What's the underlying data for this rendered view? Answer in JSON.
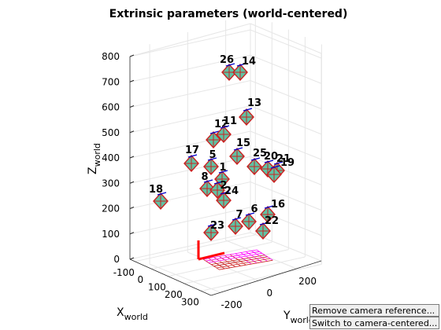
{
  "chart_data": {
    "type": "3d-scatter",
    "title": "Extrinsic parameters (world-centered)",
    "xlabel": {
      "main": "X",
      "sub": "world"
    },
    "ylabel": {
      "main": "Y",
      "sub": "world"
    },
    "zlabel": {
      "main": "Z",
      "sub": "world"
    },
    "x_ticks": [
      "-100",
      "0",
      "100",
      "200",
      "300"
    ],
    "y_ticks": [
      "-200",
      "0",
      "200"
    ],
    "z_ticks": [
      "0",
      "100",
      "200",
      "300",
      "400",
      "500",
      "600",
      "700",
      "800"
    ],
    "grid": true,
    "camera_labels": [
      "26",
      "14",
      "13",
      "12",
      "11",
      "15",
      "17",
      "5",
      "25",
      "20",
      "21",
      "19",
      "1",
      "8",
      "2",
      "24",
      "18",
      "16",
      "6",
      "7",
      "22",
      "23"
    ],
    "colors": {
      "frame": "#cc2222",
      "face": "#5fc2a3",
      "board": "#ff00ff",
      "axis": "#000000",
      "grid": "#e6e6e6"
    }
  },
  "controls": {
    "remove_label": "Remove camera reference...",
    "switch_label": "Switch to camera-centered..."
  }
}
